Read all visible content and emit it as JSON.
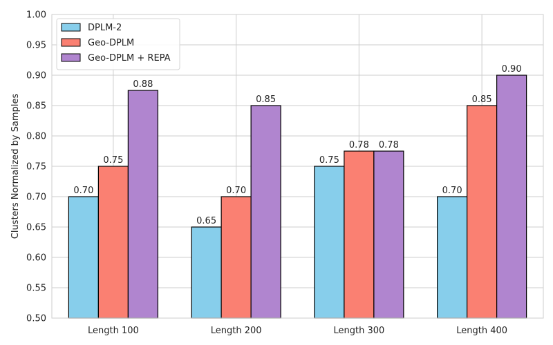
{
  "chart_data": {
    "type": "bar",
    "title": "",
    "xlabel": "",
    "ylabel": "Clusters Normalized by Samples",
    "categories": [
      "Length 100",
      "Length 200",
      "Length 300",
      "Length 400"
    ],
    "series": [
      {
        "name": "DPLM-2",
        "color": "#87ceeb",
        "values": [
          0.7,
          0.65,
          0.75,
          0.7
        ],
        "labels": [
          "0.70",
          "0.65",
          "0.75",
          "0.70"
        ]
      },
      {
        "name": "Geo-DPLM",
        "color": "#fa8072",
        "values": [
          0.75,
          0.7,
          0.775,
          0.85
        ],
        "labels": [
          "0.75",
          "0.70",
          "0.78",
          "0.85"
        ]
      },
      {
        "name": "Geo-DPLM + REPA",
        "color": "#b085cf",
        "values": [
          0.875,
          0.85,
          0.775,
          0.9
        ],
        "labels": [
          "0.88",
          "0.85",
          "0.78",
          "0.90"
        ]
      }
    ],
    "ylim": [
      0.5,
      1.0
    ],
    "yticks": [
      "0.50",
      "0.55",
      "0.60",
      "0.65",
      "0.70",
      "0.75",
      "0.80",
      "0.85",
      "0.90",
      "0.95",
      "1.00"
    ],
    "grid": true,
    "legend_position": "top-left",
    "bar_edge_color": "#000000"
  }
}
